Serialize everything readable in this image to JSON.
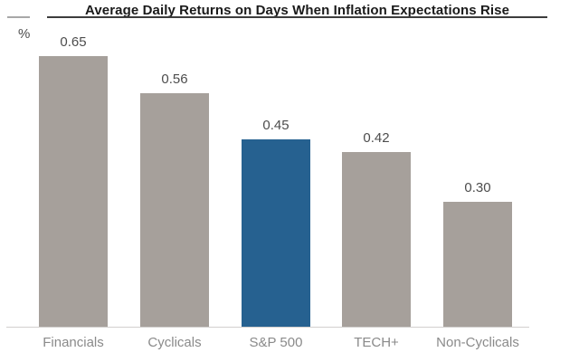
{
  "header": {
    "unit_label": "%"
  },
  "chart_data": {
    "type": "bar",
    "title": "Average Daily Returns on Days When Inflation Expectations Rise",
    "xlabel": "",
    "ylabel": "%",
    "categories": [
      "Financials",
      "Cyclicals",
      "S&P 500",
      "TECH+",
      "Non-Cyclicals"
    ],
    "values": [
      0.65,
      0.56,
      0.45,
      0.42,
      0.3
    ],
    "value_labels": [
      "0.65",
      "0.56",
      "0.45",
      "0.42",
      "0.30"
    ],
    "highlight_index": 2,
    "highlight_category": "S&P 500",
    "bar_color": "#a6a09b",
    "highlight_color": "#266190",
    "ylim": [
      0,
      0.78
    ],
    "grid": false,
    "legend": "none",
    "data_labels": true
  }
}
